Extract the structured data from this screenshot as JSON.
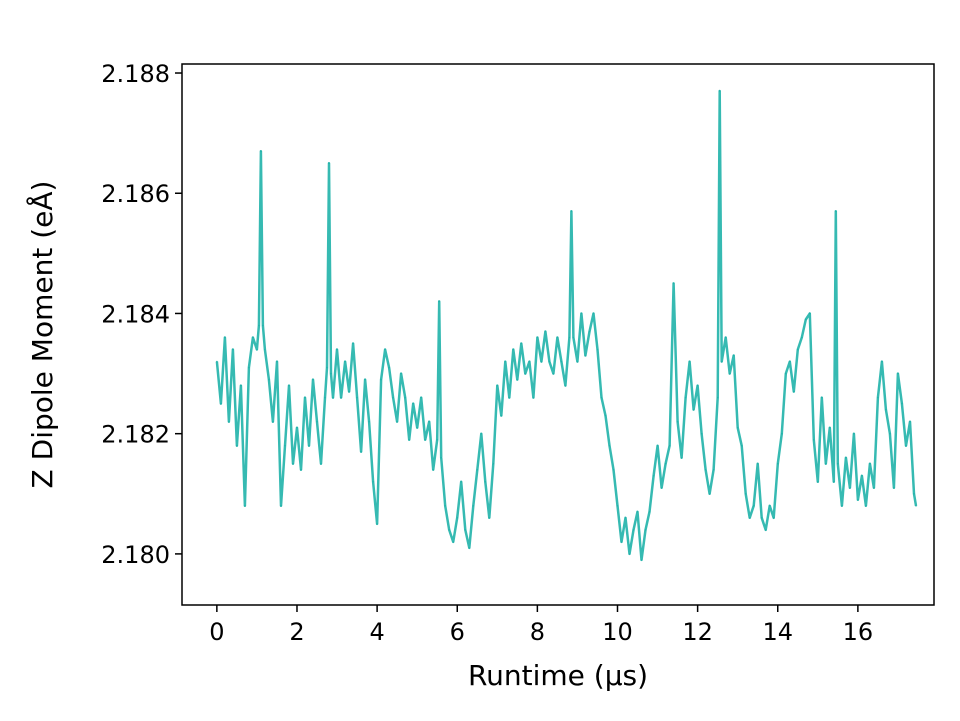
{
  "chart_data": {
    "type": "line",
    "title": "",
    "xlabel": "Runtime (μs)",
    "ylabel": "Z Dipole Moment (eÅ)",
    "xlim": [
      -0.87,
      17.9
    ],
    "ylim": [
      2.17915,
      2.18815
    ],
    "xticks": [
      0,
      2,
      4,
      6,
      8,
      10,
      12,
      14,
      16
    ],
    "xtick_labels": [
      "0",
      "2",
      "4",
      "6",
      "8",
      "10",
      "12",
      "14",
      "16"
    ],
    "yticks": [
      2.18,
      2.182,
      2.184,
      2.186,
      2.188
    ],
    "ytick_labels": [
      "2.180",
      "2.182",
      "2.184",
      "2.186",
      "2.188"
    ],
    "grid": false,
    "legend": "none",
    "series": [
      {
        "color": "#20b2aa",
        "x": [
          0.0,
          0.1,
          0.2,
          0.3,
          0.4,
          0.5,
          0.6,
          0.7,
          0.8,
          0.9,
          1.0,
          1.05,
          1.1,
          1.15,
          1.2,
          1.3,
          1.4,
          1.5,
          1.6,
          1.7,
          1.8,
          1.9,
          2.0,
          2.1,
          2.2,
          2.3,
          2.4,
          2.5,
          2.6,
          2.7,
          2.75,
          2.8,
          2.85,
          2.9,
          3.0,
          3.1,
          3.2,
          3.3,
          3.4,
          3.5,
          3.6,
          3.7,
          3.8,
          3.9,
          4.0,
          4.1,
          4.2,
          4.3,
          4.4,
          4.5,
          4.6,
          4.7,
          4.8,
          4.9,
          5.0,
          5.1,
          5.2,
          5.3,
          5.4,
          5.5,
          5.55,
          5.6,
          5.7,
          5.8,
          5.9,
          6.0,
          6.1,
          6.2,
          6.3,
          6.4,
          6.5,
          6.6,
          6.7,
          6.8,
          6.9,
          7.0,
          7.1,
          7.2,
          7.3,
          7.4,
          7.5,
          7.6,
          7.7,
          7.8,
          7.9,
          8.0,
          8.1,
          8.2,
          8.3,
          8.4,
          8.5,
          8.6,
          8.7,
          8.8,
          8.85,
          8.9,
          9.0,
          9.1,
          9.2,
          9.3,
          9.4,
          9.5,
          9.6,
          9.7,
          9.8,
          9.9,
          10.0,
          10.1,
          10.2,
          10.3,
          10.4,
          10.5,
          10.6,
          10.7,
          10.8,
          10.9,
          11.0,
          11.1,
          11.2,
          11.3,
          11.4,
          11.5,
          11.6,
          11.7,
          11.8,
          11.9,
          12.0,
          12.1,
          12.2,
          12.3,
          12.4,
          12.5,
          12.55,
          12.6,
          12.7,
          12.8,
          12.9,
          13.0,
          13.1,
          13.2,
          13.3,
          13.4,
          13.5,
          13.6,
          13.7,
          13.8,
          13.9,
          14.0,
          14.1,
          14.2,
          14.3,
          14.4,
          14.5,
          14.6,
          14.7,
          14.8,
          14.9,
          15.0,
          15.1,
          15.2,
          15.3,
          15.4,
          15.45,
          15.5,
          15.6,
          15.7,
          15.8,
          15.9,
          16.0,
          16.1,
          16.2,
          16.3,
          16.4,
          16.5,
          16.6,
          16.7,
          16.8,
          16.9,
          17.0,
          17.1,
          17.2,
          17.3,
          17.4,
          17.45
        ],
        "y": [
          2.1832,
          2.1825,
          2.1836,
          2.1822,
          2.1834,
          2.1818,
          2.1828,
          2.1808,
          2.1831,
          2.1836,
          2.1834,
          2.1838,
          2.1867,
          2.1838,
          2.1834,
          2.1829,
          2.1822,
          2.1832,
          2.1808,
          2.1818,
          2.1828,
          2.1815,
          2.1821,
          2.1814,
          2.1826,
          2.1818,
          2.1829,
          2.1822,
          2.1815,
          2.1826,
          2.1831,
          2.1865,
          2.183,
          2.1826,
          2.1834,
          2.1826,
          2.1832,
          2.1827,
          2.1835,
          2.1826,
          2.1817,
          2.1829,
          2.1822,
          2.1812,
          2.1805,
          2.1829,
          2.1834,
          2.1831,
          2.1826,
          2.1822,
          2.183,
          2.1826,
          2.1819,
          2.1825,
          2.1821,
          2.1826,
          2.1819,
          2.1822,
          2.1814,
          2.1819,
          2.1842,
          2.1816,
          2.1808,
          2.1804,
          2.1802,
          2.1806,
          2.1812,
          2.1804,
          2.1801,
          2.1808,
          2.1814,
          2.182,
          2.1812,
          2.1806,
          2.1815,
          2.1828,
          2.1823,
          2.1832,
          2.1826,
          2.1834,
          2.1829,
          2.1835,
          2.183,
          2.1832,
          2.1826,
          2.1836,
          2.1832,
          2.1837,
          2.1832,
          2.183,
          2.1836,
          2.1832,
          2.1828,
          2.1836,
          2.1857,
          2.1836,
          2.1832,
          2.184,
          2.1833,
          2.1837,
          2.184,
          2.1834,
          2.1826,
          2.1823,
          2.1818,
          2.1814,
          2.1808,
          2.1802,
          2.1806,
          2.18,
          2.1804,
          2.1807,
          2.1799,
          2.1804,
          2.1807,
          2.1813,
          2.1818,
          2.1811,
          2.1815,
          2.1818,
          2.1845,
          2.1822,
          2.1816,
          2.1826,
          2.1832,
          2.1824,
          2.1828,
          2.182,
          2.1814,
          2.181,
          2.1814,
          2.1826,
          2.1877,
          2.1832,
          2.1836,
          2.183,
          2.1833,
          2.1821,
          2.1818,
          2.181,
          2.1806,
          2.1808,
          2.1815,
          2.1806,
          2.1804,
          2.1808,
          2.1806,
          2.1815,
          2.182,
          2.183,
          2.1832,
          2.1827,
          2.1834,
          2.1836,
          2.1839,
          2.184,
          2.1819,
          2.1812,
          2.1826,
          2.1815,
          2.1821,
          2.1812,
          2.1857,
          2.1815,
          2.1808,
          2.1816,
          2.1811,
          2.182,
          2.1809,
          2.1813,
          2.1808,
          2.1815,
          2.1811,
          2.1826,
          2.1832,
          2.1824,
          2.182,
          2.1811,
          2.183,
          2.1825,
          2.1818,
          2.1822,
          2.181,
          2.1808
        ]
      }
    ]
  }
}
